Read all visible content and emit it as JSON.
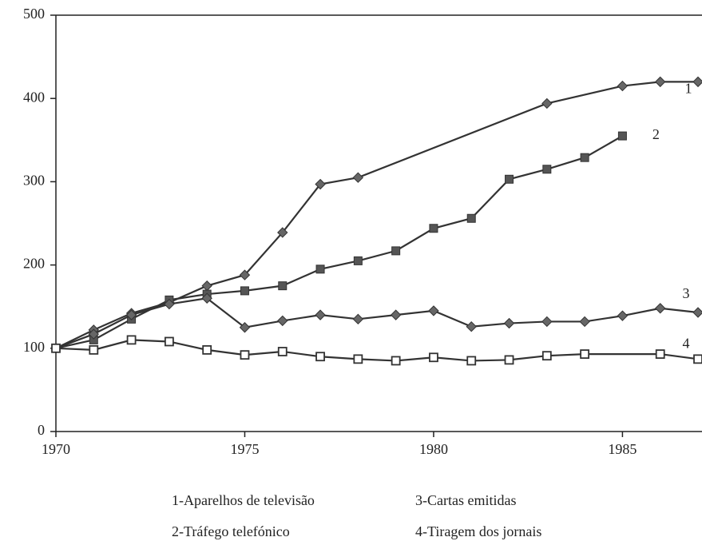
{
  "chart_data": {
    "type": "line",
    "xlim": [
      1970,
      1987
    ],
    "xticks": [
      1970,
      1975,
      1980,
      1985
    ],
    "ylim": [
      0,
      500
    ],
    "yticks": [
      0,
      100,
      200,
      300,
      400,
      500
    ],
    "grid": false,
    "series": [
      {
        "name": "1-Aparelhos de televisão",
        "label": "1",
        "color": "#333333",
        "marker": "diamond",
        "x": [
          1970,
          1971,
          1972,
          1973,
          1974,
          1975,
          1976,
          1977,
          1978,
          1983,
          1985,
          1986,
          1987
        ],
        "values": [
          100,
          122,
          142,
          155,
          175,
          188,
          239,
          297,
          305,
          394,
          415,
          420,
          420
        ]
      },
      {
        "name": "2-Tráfego telefónico",
        "label": "2",
        "color": "#333333",
        "marker": "square-filled",
        "x": [
          1970,
          1971,
          1972,
          1973,
          1974,
          1975,
          1976,
          1977,
          1978,
          1979,
          1980,
          1981,
          1982,
          1983,
          1984,
          1985
        ],
        "values": [
          100,
          110,
          135,
          158,
          165,
          169,
          175,
          195,
          205,
          217,
          244,
          256,
          303,
          315,
          329,
          355
        ]
      },
      {
        "name": "3-Cartas emitidas",
        "label": "3",
        "color": "#333333",
        "marker": "diamond",
        "x": [
          1970,
          1971,
          1972,
          1973,
          1974,
          1975,
          1976,
          1977,
          1978,
          1979,
          1980,
          1981,
          1982,
          1983,
          1984,
          1985,
          1986,
          1987
        ],
        "values": [
          100,
          117,
          140,
          153,
          160,
          125,
          133,
          140,
          135,
          140,
          145,
          126,
          130,
          132,
          132,
          139,
          148,
          143
        ]
      },
      {
        "name": "4-Tiragem dos jornais",
        "label": "4",
        "color": "#333333",
        "marker": "square-open",
        "x": [
          1970,
          1971,
          1972,
          1973,
          1974,
          1975,
          1976,
          1977,
          1978,
          1979,
          1980,
          1981,
          1982,
          1983,
          1984,
          1986,
          1987
        ],
        "values": [
          100,
          98,
          110,
          108,
          98,
          92,
          96,
          90,
          87,
          85,
          89,
          85,
          86,
          91,
          93,
          93,
          87
        ]
      }
    ]
  }
}
